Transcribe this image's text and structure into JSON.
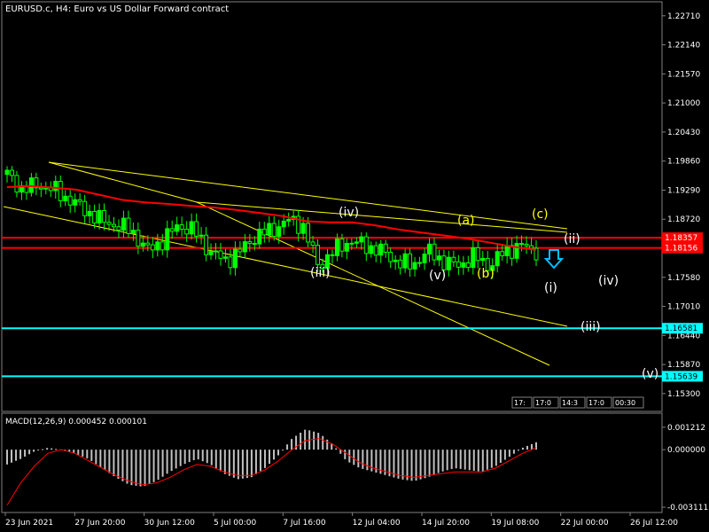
{
  "window": {
    "title": "EURUSD.c, H4:  Euro vs US Dollar Forward contract"
  },
  "colors": {
    "background": "#000000",
    "grid": "#2f4f4f",
    "bull_candle": "#00ff00",
    "bear_candle": "#000000",
    "candle_outline": "#00ff00",
    "ma_line": "#ff0000",
    "trend_line": "#ffff00",
    "support_line": "#00ffff",
    "resistance_line": "#ff0000",
    "wave_label_white": "#ffffff",
    "wave_label_yellow": "#ffff00",
    "arrow": "#00bfff",
    "macd_hist": "#c0c0c0",
    "macd_signal": "#ff0000"
  },
  "chart_data": [
    {
      "type": "candlestick",
      "title": "EURUSD.c, H4:  Euro vs US Dollar Forward contract",
      "x_tick_labels": [
        "23 Jun 2021",
        "27 Jun 20:00",
        "30 Jun 12:00",
        "5 Jul 00:00",
        "7 Jul 16:00",
        "12 Jul 04:00",
        "14 Jul 20:00",
        "19 Jul 08:00",
        "22 Jul 00:00",
        "26 Jul 12:00"
      ],
      "y_tick_labels": [
        "1.22710",
        "1.22140",
        "1.21570",
        "1.21000",
        "1.20430",
        "1.19860",
        "1.19290",
        "1.18720",
        "1.18150",
        "1.17580",
        "1.17010",
        "1.16440",
        "1.15870",
        "1.15300"
      ],
      "ylim": [
        1.1495,
        1.2295
      ],
      "price_lines": [
        {
          "label": "1.18357",
          "value": 1.18357,
          "kind": "resistance"
        },
        {
          "label": "1.18156",
          "value": 1.18156,
          "kind": "resistance"
        },
        {
          "label": "1.16581",
          "value": 1.16581,
          "kind": "support"
        },
        {
          "label": "1.15639",
          "value": 1.15639,
          "kind": "support"
        }
      ],
      "wave_labels_white": [
        "(iv)",
        "(iii)",
        "(v)",
        "(ii)",
        "(i)",
        "(iv)",
        "(iii)",
        "(v)"
      ],
      "wave_labels_yellow": [
        "(a)",
        "(b)",
        "(c)"
      ],
      "ma_values": [
        1.1935,
        1.1937,
        1.1934,
        1.193,
        1.192,
        1.191,
        1.1905,
        1.1902,
        1.1898,
        1.1895,
        1.189,
        1.1884,
        1.1878,
        1.1868,
        1.1866,
        1.1866,
        1.186,
        1.1852,
        1.1846,
        1.184,
        1.1834,
        1.1826,
        1.1818,
        1.1812
      ],
      "series_values": [
        1.196,
        1.193,
        1.194,
        1.193,
        1.191,
        1.189,
        1.187,
        1.186,
        1.185,
        1.181,
        1.183,
        1.186,
        1.185,
        1.181,
        1.179,
        1.181,
        1.184,
        1.185,
        1.187,
        1.186,
        1.178,
        1.181,
        1.183,
        1.182,
        1.181,
        1.179,
        1.178,
        1.181,
        1.179,
        1.178,
        1.18,
        1.178,
        1.181,
        1.182,
        1.181
      ]
    },
    {
      "type": "bar",
      "title": "MACD(12,26,9) 0.000452 0.000101",
      "y_tick_labels": [
        "0.001212",
        "0.000000",
        "-0.003111"
      ],
      "ylim": [
        -0.0033,
        0.0013
      ],
      "histogram": [
        -0.0008,
        -0.0005,
        -0.0001,
        0.0001,
        0.0,
        -0.0002,
        -0.0005,
        -0.001,
        -0.0015,
        -0.0019,
        -0.002,
        -0.0017,
        -0.0012,
        -0.0008,
        -0.0005,
        -0.0008,
        -0.0013,
        -0.0016,
        -0.0015,
        -0.001,
        -0.0003,
        0.0006,
        0.0011,
        0.0009,
        0.0003,
        -0.0006,
        -0.001,
        -0.0012,
        -0.0014,
        -0.0016,
        -0.0017,
        -0.0015,
        -0.0012,
        -0.001,
        -0.0011,
        -0.0012,
        -0.0009,
        -0.0004,
        0.0001,
        0.0004
      ],
      "signal": [
        -0.003,
        -0.0018,
        -0.0009,
        -0.0002,
        0.0,
        -0.0002,
        -0.0006,
        -0.001,
        -0.0014,
        -0.0017,
        -0.0019,
        -0.0018,
        -0.0015,
        -0.0011,
        -0.0008,
        -0.0009,
        -0.0012,
        -0.0014,
        -0.0014,
        -0.0011,
        -0.0006,
        0.0,
        0.0005,
        0.0006,
        0.0003,
        -0.0002,
        -0.0007,
        -0.001,
        -0.0012,
        -0.0014,
        -0.0015,
        -0.0014,
        -0.0013,
        -0.0012,
        -0.0012,
        -0.0012,
        -0.001,
        -0.0006,
        -0.0002,
        0.0001
      ]
    }
  ],
  "time_marks": [
    "17:",
    "17:0",
    "14:3",
    "17:0",
    "00:30"
  ]
}
